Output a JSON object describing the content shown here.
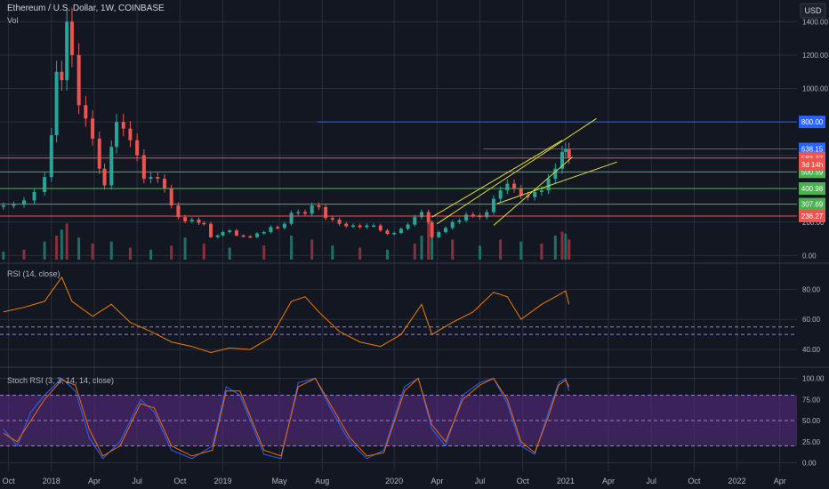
{
  "header": {
    "symbol_line": "Ethereum / U.S. Dollar, 1W, COINBASE",
    "vol_label": "Vol",
    "currency_button": "USD"
  },
  "chart_data": [
    {
      "type": "candlestick",
      "title": "Ethereum / U.S. Dollar, 1W, COINBASE",
      "ylabel": "USD",
      "ylim": [
        -30,
        1530
      ],
      "yticks": [
        0,
        200,
        400,
        600,
        800,
        1000,
        1200,
        1400
      ],
      "ytick_labels": [
        "0.00",
        "200.00",
        "400.00",
        "600.00",
        "800.00",
        "1000.00",
        "1200.00",
        "1400.00"
      ],
      "x_ticks": [
        "Oct",
        "2018",
        "Apr",
        "Jul",
        "Oct",
        "2019",
        "May",
        "Aug",
        "2020",
        "Apr",
        "Jul",
        "Oct",
        "2021",
        "Apr",
        "Jul",
        "Oct",
        "2022",
        "Apr"
      ],
      "series": [
        {
          "name": "ETHUSD",
          "candle_points": [
            [
              2017.72,
              300
            ],
            [
              2017.78,
              305
            ],
            [
              2017.84,
              330
            ],
            [
              2017.9,
              380
            ],
            [
              2017.96,
              470
            ],
            [
              2018.0,
              720
            ],
            [
              2018.03,
              1100
            ],
            [
              2018.06,
              1050
            ],
            [
              2018.09,
              1400
            ],
            [
              2018.12,
              1200
            ],
            [
              2018.16,
              900
            ],
            [
              2018.2,
              820
            ],
            [
              2018.24,
              700
            ],
            [
              2018.28,
              520
            ],
            [
              2018.31,
              420
            ],
            [
              2018.35,
              650
            ],
            [
              2018.38,
              800
            ],
            [
              2018.42,
              760
            ],
            [
              2018.46,
              690
            ],
            [
              2018.5,
              600
            ],
            [
              2018.54,
              460
            ],
            [
              2018.58,
              470
            ],
            [
              2018.62,
              460
            ],
            [
              2018.66,
              400
            ],
            [
              2018.7,
              300
            ],
            [
              2018.74,
              230
            ],
            [
              2018.78,
              205
            ],
            [
              2018.82,
              215
            ],
            [
              2018.86,
              195
            ],
            [
              2018.89,
              190
            ],
            [
              2018.93,
              110
            ],
            [
              2018.97,
              120
            ],
            [
              2019.0,
              140
            ],
            [
              2019.04,
              150
            ],
            [
              2019.08,
              120
            ],
            [
              2019.12,
              115
            ],
            [
              2019.16,
              110
            ],
            [
              2019.2,
              132
            ],
            [
              2019.24,
              140
            ],
            [
              2019.28,
              170
            ],
            [
              2019.32,
              165
            ],
            [
              2019.36,
              190
            ],
            [
              2019.4,
              255
            ],
            [
              2019.44,
              260
            ],
            [
              2019.48,
              250
            ],
            [
              2019.52,
              300
            ],
            [
              2019.56,
              290
            ],
            [
              2019.6,
              225
            ],
            [
              2019.64,
              215
            ],
            [
              2019.68,
              190
            ],
            [
              2019.72,
              175
            ],
            [
              2019.76,
              180
            ],
            [
              2019.8,
              170
            ],
            [
              2019.84,
              180
            ],
            [
              2019.88,
              180
            ],
            [
              2019.92,
              150
            ],
            [
              2019.96,
              130
            ],
            [
              2020.0,
              135
            ],
            [
              2020.04,
              160
            ],
            [
              2020.08,
              185
            ],
            [
              2020.12,
              230
            ],
            [
              2020.16,
              260
            ],
            [
              2020.2,
              200
            ],
            [
              2020.22,
              110
            ],
            [
              2020.26,
              140
            ],
            [
              2020.3,
              165
            ],
            [
              2020.34,
              200
            ],
            [
              2020.38,
              210
            ],
            [
              2020.42,
              245
            ],
            [
              2020.46,
              240
            ],
            [
              2020.5,
              230
            ],
            [
              2020.54,
              260
            ],
            [
              2020.58,
              340
            ],
            [
              2020.62,
              390
            ],
            [
              2020.66,
              430
            ],
            [
              2020.7,
              400
            ],
            [
              2020.74,
              360
            ],
            [
              2020.78,
              350
            ],
            [
              2020.82,
              380
            ],
            [
              2020.86,
              390
            ],
            [
              2020.9,
              460
            ],
            [
              2020.94,
              520
            ],
            [
              2020.98,
              620
            ],
            [
              2021.0,
              638
            ],
            [
              2021.02,
              583
            ]
          ],
          "color_up": "#26a69a",
          "color_down": "#ef5350"
        },
        {
          "name": "Vol",
          "volume_points": [
            [
              2017.72,
              0.2
            ],
            [
              2017.84,
              0.25
            ],
            [
              2017.96,
              0.45
            ],
            [
              2018.03,
              0.6
            ],
            [
              2018.06,
              0.75
            ],
            [
              2018.09,
              0.9
            ],
            [
              2018.16,
              0.55
            ],
            [
              2018.24,
              0.4
            ],
            [
              2018.35,
              0.45
            ],
            [
              2018.46,
              0.3
            ],
            [
              2018.58,
              0.25
            ],
            [
              2018.7,
              0.35
            ],
            [
              2018.78,
              0.55
            ],
            [
              2018.89,
              0.4
            ],
            [
              2019.04,
              0.3
            ],
            [
              2019.24,
              0.35
            ],
            [
              2019.4,
              0.6
            ],
            [
              2019.52,
              0.5
            ],
            [
              2019.64,
              0.35
            ],
            [
              2019.8,
              0.3
            ],
            [
              2019.96,
              0.25
            ],
            [
              2020.12,
              0.4
            ],
            [
              2020.16,
              0.6
            ],
            [
              2020.2,
              0.95
            ],
            [
              2020.22,
              0.7
            ],
            [
              2020.34,
              0.5
            ],
            [
              2020.5,
              0.35
            ],
            [
              2020.62,
              0.5
            ],
            [
              2020.74,
              0.45
            ],
            [
              2020.86,
              0.4
            ],
            [
              2020.94,
              0.6
            ],
            [
              2020.98,
              0.7
            ],
            [
              2021.0,
              0.65
            ],
            [
              2021.02,
              0.5
            ]
          ]
        }
      ],
      "horizontal_levels": [
        {
          "value": 800.0,
          "label": "800.00",
          "color": "#2962ff"
        },
        {
          "value": 638.15,
          "label": "638.15",
          "color": "#2962ff"
        },
        {
          "value": 583.37,
          "label": "583.37",
          "color": "#ef5350"
        },
        {
          "value": 500.59,
          "label": "500.59",
          "color": "#4caf50"
        },
        {
          "value": 400.98,
          "label": "400.98",
          "color": "#4caf50"
        },
        {
          "value": 307.69,
          "label": "307.69",
          "color": "#4caf50"
        },
        {
          "value": 236.27,
          "label": "236.27",
          "color": "#ef5350"
        }
      ],
      "countdown_label": "3d 14h",
      "annotations": [
        "rising wedge trendlines"
      ]
    },
    {
      "type": "line",
      "title": "RSI (14, close)",
      "ylim": [
        30,
        95
      ],
      "yticks": [
        40,
        60,
        80
      ],
      "ytick_labels": [
        "40.00",
        "60.00",
        "80.00"
      ],
      "bands": [
        50,
        55
      ],
      "series": [
        {
          "name": "RSI",
          "points": [
            [
              2017.72,
              65
            ],
            [
              2017.84,
              68
            ],
            [
              2017.96,
              72
            ],
            [
              2018.06,
              88
            ],
            [
              2018.12,
              72
            ],
            [
              2018.24,
              62
            ],
            [
              2018.35,
              70
            ],
            [
              2018.46,
              58
            ],
            [
              2018.58,
              52
            ],
            [
              2018.7,
              45
            ],
            [
              2018.82,
              42
            ],
            [
              2018.93,
              38
            ],
            [
              2019.04,
              41
            ],
            [
              2019.16,
              40
            ],
            [
              2019.28,
              48
            ],
            [
              2019.4,
              72
            ],
            [
              2019.48,
              75
            ],
            [
              2019.56,
              65
            ],
            [
              2019.68,
              52
            ],
            [
              2019.8,
              45
            ],
            [
              2019.92,
              42
            ],
            [
              2020.04,
              50
            ],
            [
              2020.16,
              70
            ],
            [
              2020.22,
              50
            ],
            [
              2020.34,
              58
            ],
            [
              2020.46,
              65
            ],
            [
              2020.58,
              78
            ],
            [
              2020.66,
              75
            ],
            [
              2020.74,
              60
            ],
            [
              2020.86,
              70
            ],
            [
              2020.94,
              75
            ],
            [
              2021.0,
              79
            ],
            [
              2021.02,
              70
            ]
          ],
          "color": "#f57c00"
        }
      ]
    },
    {
      "type": "line",
      "title": "Stoch RSI (3, 3, 14, 14, close)",
      "ylim": [
        -10,
        110
      ],
      "yticks": [
        0,
        25,
        50,
        75,
        100
      ],
      "ytick_labels": [
        "0.00",
        "25.00",
        "50.00",
        "75.00",
        "100.00"
      ],
      "band": [
        20,
        80
      ],
      "series": [
        {
          "name": "K",
          "color": "#2962ff",
          "points": [
            [
              2017.72,
              40
            ],
            [
              2017.8,
              20
            ],
            [
              2017.88,
              60
            ],
            [
              2017.96,
              80
            ],
            [
              2018.06,
              100
            ],
            [
              2018.14,
              85
            ],
            [
              2018.22,
              30
            ],
            [
              2018.3,
              5
            ],
            [
              2018.4,
              25
            ],
            [
              2018.52,
              75
            ],
            [
              2018.6,
              60
            ],
            [
              2018.7,
              15
            ],
            [
              2018.82,
              5
            ],
            [
              2018.94,
              20
            ],
            [
              2019.02,
              90
            ],
            [
              2019.1,
              80
            ],
            [
              2019.24,
              10
            ],
            [
              2019.34,
              5
            ],
            [
              2019.44,
              95
            ],
            [
              2019.54,
              100
            ],
            [
              2019.64,
              60
            ],
            [
              2019.74,
              25
            ],
            [
              2019.84,
              5
            ],
            [
              2019.94,
              15
            ],
            [
              2020.06,
              90
            ],
            [
              2020.14,
              100
            ],
            [
              2020.22,
              40
            ],
            [
              2020.3,
              20
            ],
            [
              2020.4,
              80
            ],
            [
              2020.5,
              95
            ],
            [
              2020.58,
              100
            ],
            [
              2020.66,
              70
            ],
            [
              2020.74,
              20
            ],
            [
              2020.82,
              10
            ],
            [
              2020.9,
              60
            ],
            [
              2020.96,
              95
            ],
            [
              2021.0,
              100
            ],
            [
              2021.02,
              85
            ]
          ]
        },
        {
          "name": "D",
          "color": "#ef6c00",
          "points": [
            [
              2017.72,
              35
            ],
            [
              2017.8,
              25
            ],
            [
              2017.88,
              50
            ],
            [
              2017.96,
              75
            ],
            [
              2018.06,
              98
            ],
            [
              2018.14,
              92
            ],
            [
              2018.22,
              40
            ],
            [
              2018.3,
              8
            ],
            [
              2018.4,
              20
            ],
            [
              2018.52,
              70
            ],
            [
              2018.6,
              65
            ],
            [
              2018.7,
              20
            ],
            [
              2018.82,
              8
            ],
            [
              2018.94,
              15
            ],
            [
              2019.02,
              85
            ],
            [
              2019.1,
              85
            ],
            [
              2019.24,
              15
            ],
            [
              2019.34,
              8
            ],
            [
              2019.44,
              90
            ],
            [
              2019.54,
              100
            ],
            [
              2019.64,
              65
            ],
            [
              2019.74,
              30
            ],
            [
              2019.84,
              8
            ],
            [
              2019.94,
              12
            ],
            [
              2020.06,
              85
            ],
            [
              2020.14,
              100
            ],
            [
              2020.22,
              45
            ],
            [
              2020.3,
              25
            ],
            [
              2020.4,
              75
            ],
            [
              2020.5,
              92
            ],
            [
              2020.58,
              100
            ],
            [
              2020.66,
              75
            ],
            [
              2020.74,
              25
            ],
            [
              2020.82,
              12
            ],
            [
              2020.9,
              55
            ],
            [
              2020.96,
              92
            ],
            [
              2021.0,
              98
            ],
            [
              2021.02,
              90
            ]
          ]
        }
      ]
    }
  ]
}
